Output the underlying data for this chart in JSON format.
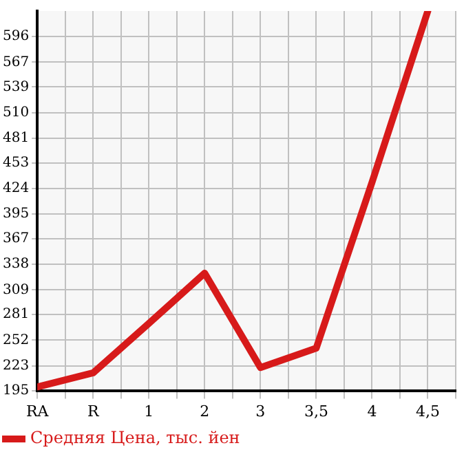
{
  "chart_data": {
    "type": "line",
    "categories": [
      "RA",
      "R",
      "1",
      "2",
      "3",
      "3,5",
      "4",
      "4,5"
    ],
    "series": [
      {
        "name": "Средняя Цена, тыс. йен",
        "color": "#d71a1a",
        "values": [
          199,
          215,
          271,
          328,
          221,
          243,
          431,
          625
        ]
      }
    ],
    "ylim": [
      195,
      625
    ],
    "yticks": [
      195,
      223,
      252,
      281,
      309,
      338,
      367,
      395,
      424,
      453,
      481,
      510,
      539,
      567,
      596
    ],
    "grid": true,
    "legend": "bottom left",
    "marker": "none",
    "line_style": "solid"
  }
}
